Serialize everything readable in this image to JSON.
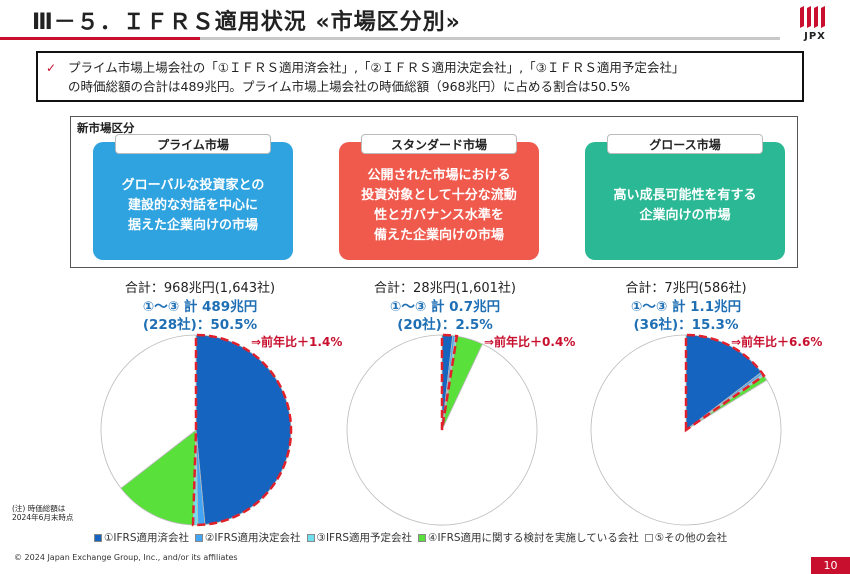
{
  "title": "Ⅲ－５．ＩＦＲＳ適用状況 «市場区分別»",
  "logo_text": "JPX",
  "summary": {
    "line1": "プライム市場上場会社の「①ＩＦＲＳ適用済会社」,「②ＩＦＲＳ適用決定会社」,「③ＩＦＲＳ適用予定会社」",
    "line2": "の時価総額の合計は489兆円。プライム市場上場会社の時価総額（968兆円）に占める割合は50.5%"
  },
  "panel_title": "新市場区分",
  "markets": [
    {
      "name": "プライム市場",
      "description": [
        "グローバルな投資家との",
        "建設的な対話を中心に",
        "据えた企業向けの市場"
      ],
      "color": "#2ea3e0",
      "total": "合計：968兆円(1,643社)",
      "ifrs_total": "①～③ 計 489兆円",
      "ifrs_share": "(228社)：50.5%",
      "yoy": "⇒前年比＋1.4%",
      "slices": [
        48.5,
        1.2,
        0.8,
        14.0,
        35.5
      ]
    },
    {
      "name": "スタンダード市場",
      "description": [
        "公開された市場における",
        "投資対象として十分な流動",
        "性とガバナンス水準を",
        "備えた企業向けの市場"
      ],
      "color": "#ef5a4d",
      "total": "合計：28兆円(1,601社)",
      "ifrs_total": "①～③ 計 0.7兆円",
      "ifrs_share": "(20社)：2.5%",
      "yoy": "⇒前年比＋0.4%",
      "slices": [
        1.8,
        0.4,
        0.3,
        4.5,
        93.0
      ]
    },
    {
      "name": "グロース市場",
      "description": [
        "高い成長可能性を有する",
        "企業向けの市場"
      ],
      "color": "#2bb894",
      "total": "合計：7兆円(586社)",
      "ifrs_total": "①～③ 計 1.1兆円",
      "ifrs_share": "(36社)：15.3%",
      "yoy": "⇒前年比＋6.6%",
      "slices": [
        14.6,
        0.4,
        0.3,
        0.9,
        83.8
      ]
    }
  ],
  "legend": [
    {
      "label": "①IFRS適用済会社",
      "color": "#1565c0"
    },
    {
      "label": "②IFRS適用決定会社",
      "color": "#42a5f5"
    },
    {
      "label": "③IFRS適用予定会社",
      "color": "#6ee0ef"
    },
    {
      "label": "④IFRS適用に関する検討を実施している会社",
      "color": "#59e03a"
    },
    {
      "label": "⑤その他の会社",
      "color": "#ffffff"
    }
  ],
  "note": [
    "(注) 時価総額は",
    "2024年6月末時点"
  ],
  "copyright": "© 2024 Japan Exchange Group, Inc., and/or its affiliates",
  "page_number": "10"
}
